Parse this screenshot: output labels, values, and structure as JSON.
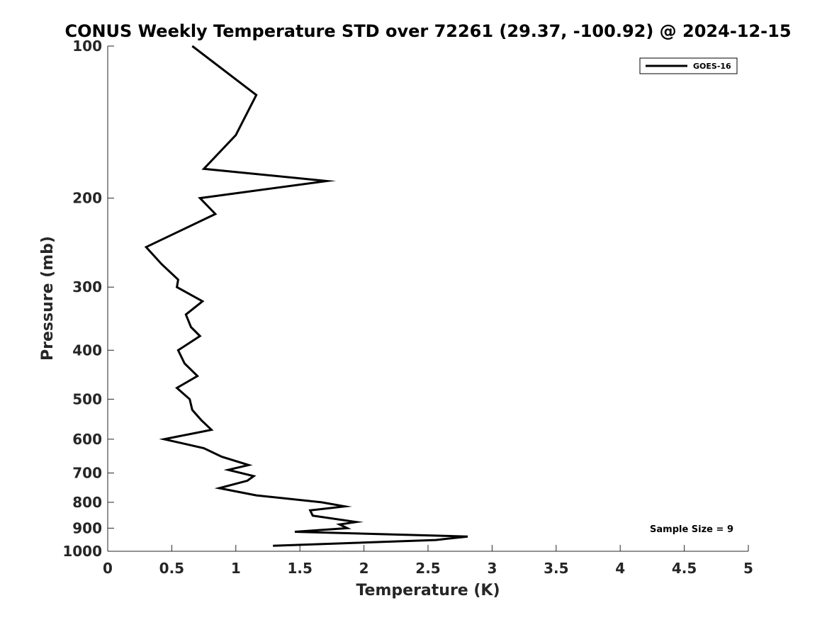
{
  "chart_data": {
    "type": "line",
    "title": "CONUS Weekly Temperature STD over 72261 (29.37, -100.92) @ 2024-12-15",
    "xlabel": "Temperature (K)",
    "ylabel": "Pressure (mb)",
    "xlim": [
      0,
      5
    ],
    "ylim": [
      100,
      1000
    ],
    "yscale": "log",
    "y_reversed": true,
    "x_ticks": [
      "0",
      "0.5",
      "1",
      "1.5",
      "2",
      "2.5",
      "3",
      "3.5",
      "4",
      "4.5",
      "5"
    ],
    "y_ticks": [
      "100",
      "200",
      "300",
      "400",
      "500",
      "600",
      "700",
      "800",
      "900",
      "1000"
    ],
    "grid": false,
    "legend_position": "top-right",
    "annotation": "Sample Size = 9",
    "series": [
      {
        "name": "GOES-16",
        "color": "#000000",
        "points": [
          [
            0.66,
            100
          ],
          [
            1.16,
            125
          ],
          [
            1.0,
            150
          ],
          [
            0.75,
            175
          ],
          [
            1.71,
            185
          ],
          [
            0.72,
            200
          ],
          [
            0.84,
            215
          ],
          [
            0.3,
            250
          ],
          [
            0.42,
            270
          ],
          [
            0.55,
            290
          ],
          [
            0.54,
            300
          ],
          [
            0.74,
            320
          ],
          [
            0.61,
            340
          ],
          [
            0.65,
            360
          ],
          [
            0.72,
            375
          ],
          [
            0.55,
            400
          ],
          [
            0.6,
            425
          ],
          [
            0.7,
            450
          ],
          [
            0.54,
            475
          ],
          [
            0.64,
            500
          ],
          [
            0.66,
            525
          ],
          [
            0.73,
            550
          ],
          [
            0.81,
            575
          ],
          [
            0.66,
            585
          ],
          [
            0.44,
            600
          ],
          [
            0.75,
            625
          ],
          [
            0.89,
            650
          ],
          [
            1.1,
            675
          ],
          [
            0.94,
            690
          ],
          [
            1.14,
            710
          ],
          [
            1.09,
            725
          ],
          [
            0.87,
            750
          ],
          [
            1.16,
            775
          ],
          [
            1.67,
            800
          ],
          [
            1.85,
            815
          ],
          [
            1.58,
            830
          ],
          [
            1.6,
            850
          ],
          [
            1.94,
            875
          ],
          [
            1.81,
            885
          ],
          [
            1.87,
            900
          ],
          [
            1.46,
            915
          ],
          [
            2.81,
            935
          ],
          [
            2.56,
            950
          ],
          [
            1.29,
            975
          ]
        ]
      }
    ]
  }
}
